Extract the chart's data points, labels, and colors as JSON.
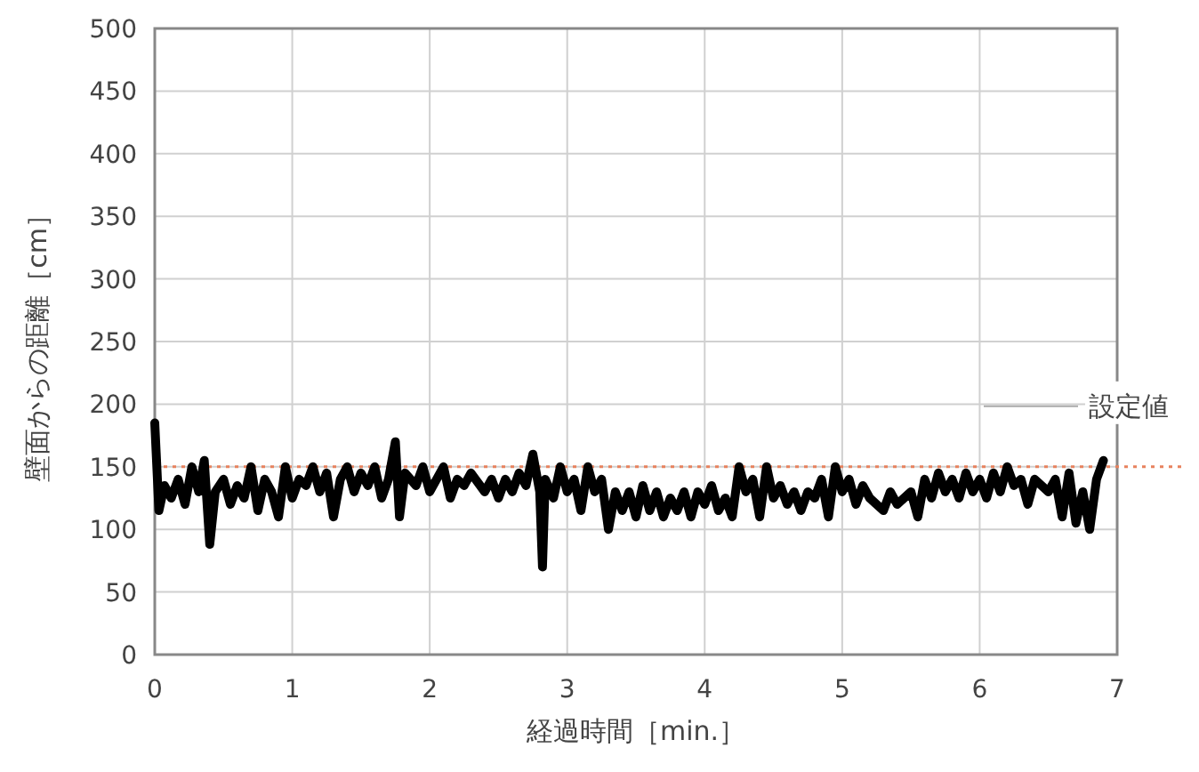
{
  "chart_data": {
    "type": "line",
    "xlabel": "経過時間［min.］",
    "ylabel": "壁面からの距離［cm］",
    "xlim": [
      0,
      7
    ],
    "xticks": [
      0,
      1,
      2,
      3,
      4,
      5,
      6,
      7
    ],
    "ylim": [
      0,
      500
    ],
    "yticks": [
      0,
      50,
      100,
      150,
      200,
      250,
      300,
      350,
      400,
      450,
      500
    ],
    "grid": true,
    "line_style": "solid",
    "marker": "none",
    "series": [
      {
        "color": "#000000",
        "x": [
          0,
          0.03,
          0.07,
          0.12,
          0.17,
          0.22,
          0.27,
          0.32,
          0.36,
          0.4,
          0.44,
          0.5,
          0.55,
          0.6,
          0.65,
          0.7,
          0.75,
          0.8,
          0.85,
          0.9,
          0.95,
          1.0,
          1.05,
          1.1,
          1.15,
          1.2,
          1.25,
          1.3,
          1.35,
          1.4,
          1.45,
          1.5,
          1.55,
          1.6,
          1.65,
          1.7,
          1.75,
          1.78,
          1.82,
          1.9,
          1.95,
          2.0,
          2.05,
          2.1,
          2.15,
          2.2,
          2.25,
          2.3,
          2.4,
          2.45,
          2.5,
          2.55,
          2.6,
          2.65,
          2.7,
          2.75,
          2.8,
          2.82,
          2.84,
          2.9,
          2.95,
          3.0,
          3.05,
          3.1,
          3.15,
          3.2,
          3.25,
          3.3,
          3.35,
          3.4,
          3.45,
          3.5,
          3.55,
          3.6,
          3.65,
          3.7,
          3.75,
          3.8,
          3.85,
          3.9,
          3.95,
          4.0,
          4.05,
          4.1,
          4.15,
          4.2,
          4.25,
          4.3,
          4.35,
          4.4,
          4.45,
          4.5,
          4.55,
          4.6,
          4.65,
          4.7,
          4.75,
          4.8,
          4.85,
          4.9,
          4.95,
          5.0,
          5.05,
          5.1,
          5.15,
          5.2,
          5.3,
          5.35,
          5.4,
          5.5,
          5.55,
          5.6,
          5.65,
          5.7,
          5.75,
          5.8,
          5.85,
          5.9,
          5.95,
          6.0,
          6.05,
          6.1,
          6.15,
          6.2,
          6.25,
          6.3,
          6.35,
          6.4,
          6.5,
          6.55,
          6.6,
          6.65,
          6.7,
          6.75,
          6.8,
          6.85,
          6.9
        ],
        "values": [
          185,
          115,
          135,
          125,
          140,
          120,
          150,
          130,
          155,
          88,
          130,
          140,
          120,
          135,
          125,
          150,
          115,
          140,
          130,
          110,
          150,
          125,
          140,
          135,
          150,
          130,
          145,
          110,
          140,
          150,
          130,
          145,
          135,
          150,
          125,
          140,
          170,
          110,
          145,
          135,
          150,
          130,
          140,
          150,
          125,
          140,
          135,
          145,
          130,
          140,
          125,
          140,
          130,
          145,
          135,
          160,
          130,
          70,
          140,
          125,
          150,
          130,
          140,
          115,
          150,
          130,
          140,
          100,
          130,
          115,
          130,
          110,
          135,
          115,
          130,
          110,
          125,
          115,
          130,
          110,
          130,
          120,
          135,
          115,
          125,
          110,
          150,
          130,
          140,
          110,
          150,
          125,
          135,
          120,
          130,
          115,
          130,
          125,
          140,
          110,
          150,
          130,
          140,
          120,
          135,
          125,
          115,
          130,
          120,
          130,
          110,
          140,
          125,
          145,
          130,
          140,
          125,
          145,
          130,
          140,
          125,
          145,
          130,
          150,
          135,
          140,
          120,
          140,
          130,
          140,
          110,
          145,
          105,
          130,
          100,
          140,
          155
        ]
      }
    ],
    "ref_lines": [
      {
        "axis": "y",
        "value": 150,
        "label": "設定値",
        "color": "#e8825e",
        "line_style": "dotted"
      }
    ]
  }
}
